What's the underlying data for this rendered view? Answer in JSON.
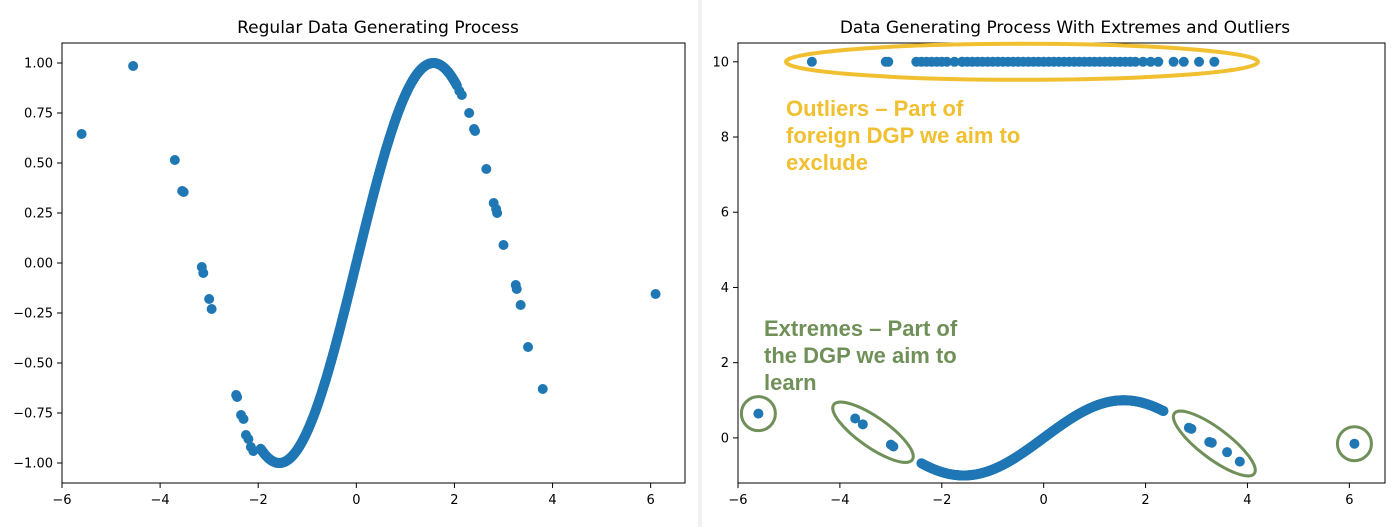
{
  "chart_data": [
    {
      "type": "scatter",
      "title": "Regular Data Generating Process",
      "xlim": [
        -6.0,
        6.7
      ],
      "ylim": [
        -1.1,
        1.1
      ],
      "xticks": [
        -6,
        -4,
        -2,
        0,
        2,
        4,
        6
      ],
      "yticks": [
        -1.0,
        -0.75,
        -0.5,
        -0.25,
        0.0,
        0.25,
        0.5,
        0.75,
        1.0
      ],
      "ytick_labels": [
        "-1.00",
        "-0.75",
        "-0.50",
        "-0.25",
        "0.00",
        "0.25",
        "0.50",
        "0.75",
        "1.00"
      ],
      "color": "#1f77b4",
      "curve": {
        "function": "sin(x)",
        "x_range": [
          -1.95,
          2.05
        ]
      },
      "points": [
        [
          -5.6,
          0.645
        ],
        [
          -4.55,
          0.985
        ],
        [
          -3.7,
          0.515
        ],
        [
          -3.55,
          0.36
        ],
        [
          -3.52,
          0.355
        ],
        [
          -3.15,
          -0.02
        ],
        [
          -3.12,
          -0.05
        ],
        [
          -3.0,
          -0.18
        ],
        [
          -2.95,
          -0.23
        ],
        [
          -2.45,
          -0.66
        ],
        [
          -2.43,
          -0.67
        ],
        [
          -2.35,
          -0.76
        ],
        [
          -2.3,
          -0.78
        ],
        [
          -2.25,
          -0.86
        ],
        [
          -2.2,
          -0.88
        ],
        [
          -2.15,
          -0.92
        ],
        [
          -2.1,
          -0.94
        ],
        [
          2.1,
          0.86
        ],
        [
          2.15,
          0.84
        ],
        [
          2.3,
          0.75
        ],
        [
          2.4,
          0.67
        ],
        [
          2.42,
          0.66
        ],
        [
          2.65,
          0.47
        ],
        [
          2.8,
          0.3
        ],
        [
          2.85,
          0.27
        ],
        [
          2.87,
          0.25
        ],
        [
          3.0,
          0.09
        ],
        [
          3.25,
          -0.11
        ],
        [
          3.27,
          -0.13
        ],
        [
          3.35,
          -0.21
        ],
        [
          3.5,
          -0.42
        ],
        [
          3.8,
          -0.63
        ],
        [
          6.1,
          -0.155
        ]
      ]
    },
    {
      "type": "scatter",
      "title": "Data Generating Process With Extremes and Outliers",
      "xlim": [
        -6.0,
        6.7
      ],
      "ylim": [
        -1.2,
        10.5
      ],
      "xticks": [
        -6,
        -4,
        -2,
        0,
        2,
        4,
        6
      ],
      "yticks": [
        0,
        2,
        4,
        6,
        8,
        10
      ],
      "ytick_labels": [
        "0",
        "2",
        "4",
        "6",
        "8",
        "10"
      ],
      "color": "#1f77b4",
      "curve": {
        "function": "sin(x)",
        "x_range": [
          -2.4,
          2.35
        ]
      },
      "points": [
        [
          -5.6,
          0.645
        ],
        [
          -3.7,
          0.515
        ],
        [
          -3.55,
          0.36
        ],
        [
          -3.0,
          -0.18
        ],
        [
          -2.95,
          -0.23
        ],
        [
          2.35,
          0.72
        ],
        [
          2.85,
          0.27
        ],
        [
          2.9,
          0.24
        ],
        [
          3.25,
          -0.11
        ],
        [
          3.3,
          -0.13
        ],
        [
          3.6,
          -0.38
        ],
        [
          3.85,
          -0.63
        ],
        [
          6.1,
          -0.155
        ]
      ],
      "outliers": {
        "y": 10,
        "x": [
          -4.55,
          -3.1,
          -3.05,
          -2.5,
          -2.4,
          -2.3,
          -2.2,
          -2.1,
          -2.0,
          -1.9,
          -1.75,
          -1.6,
          -1.6,
          -1.5,
          -1.4,
          -1.3,
          -1.2,
          -1.1,
          -1.0,
          -0.9,
          -0.8,
          -0.7,
          -0.6,
          -0.5,
          -0.4,
          -0.3,
          -0.2,
          -0.1,
          0.0,
          0.1,
          0.2,
          0.3,
          0.4,
          0.5,
          0.6,
          0.7,
          0.8,
          0.9,
          1.0,
          1.1,
          1.2,
          1.3,
          1.4,
          1.5,
          1.6,
          1.7,
          1.8,
          1.95,
          2.1,
          2.25,
          2.55,
          2.75,
          3.05,
          3.35
        ]
      },
      "annotations": [
        {
          "lines": [
            "Outliers – Part of",
            "foreign DGP we aim to",
            "exclude"
          ],
          "color": "#f0c030"
        },
        {
          "lines": [
            "Extremes – Part of",
            "the DGP we aim to",
            "learn"
          ],
          "color": "#70905a"
        }
      ]
    }
  ]
}
